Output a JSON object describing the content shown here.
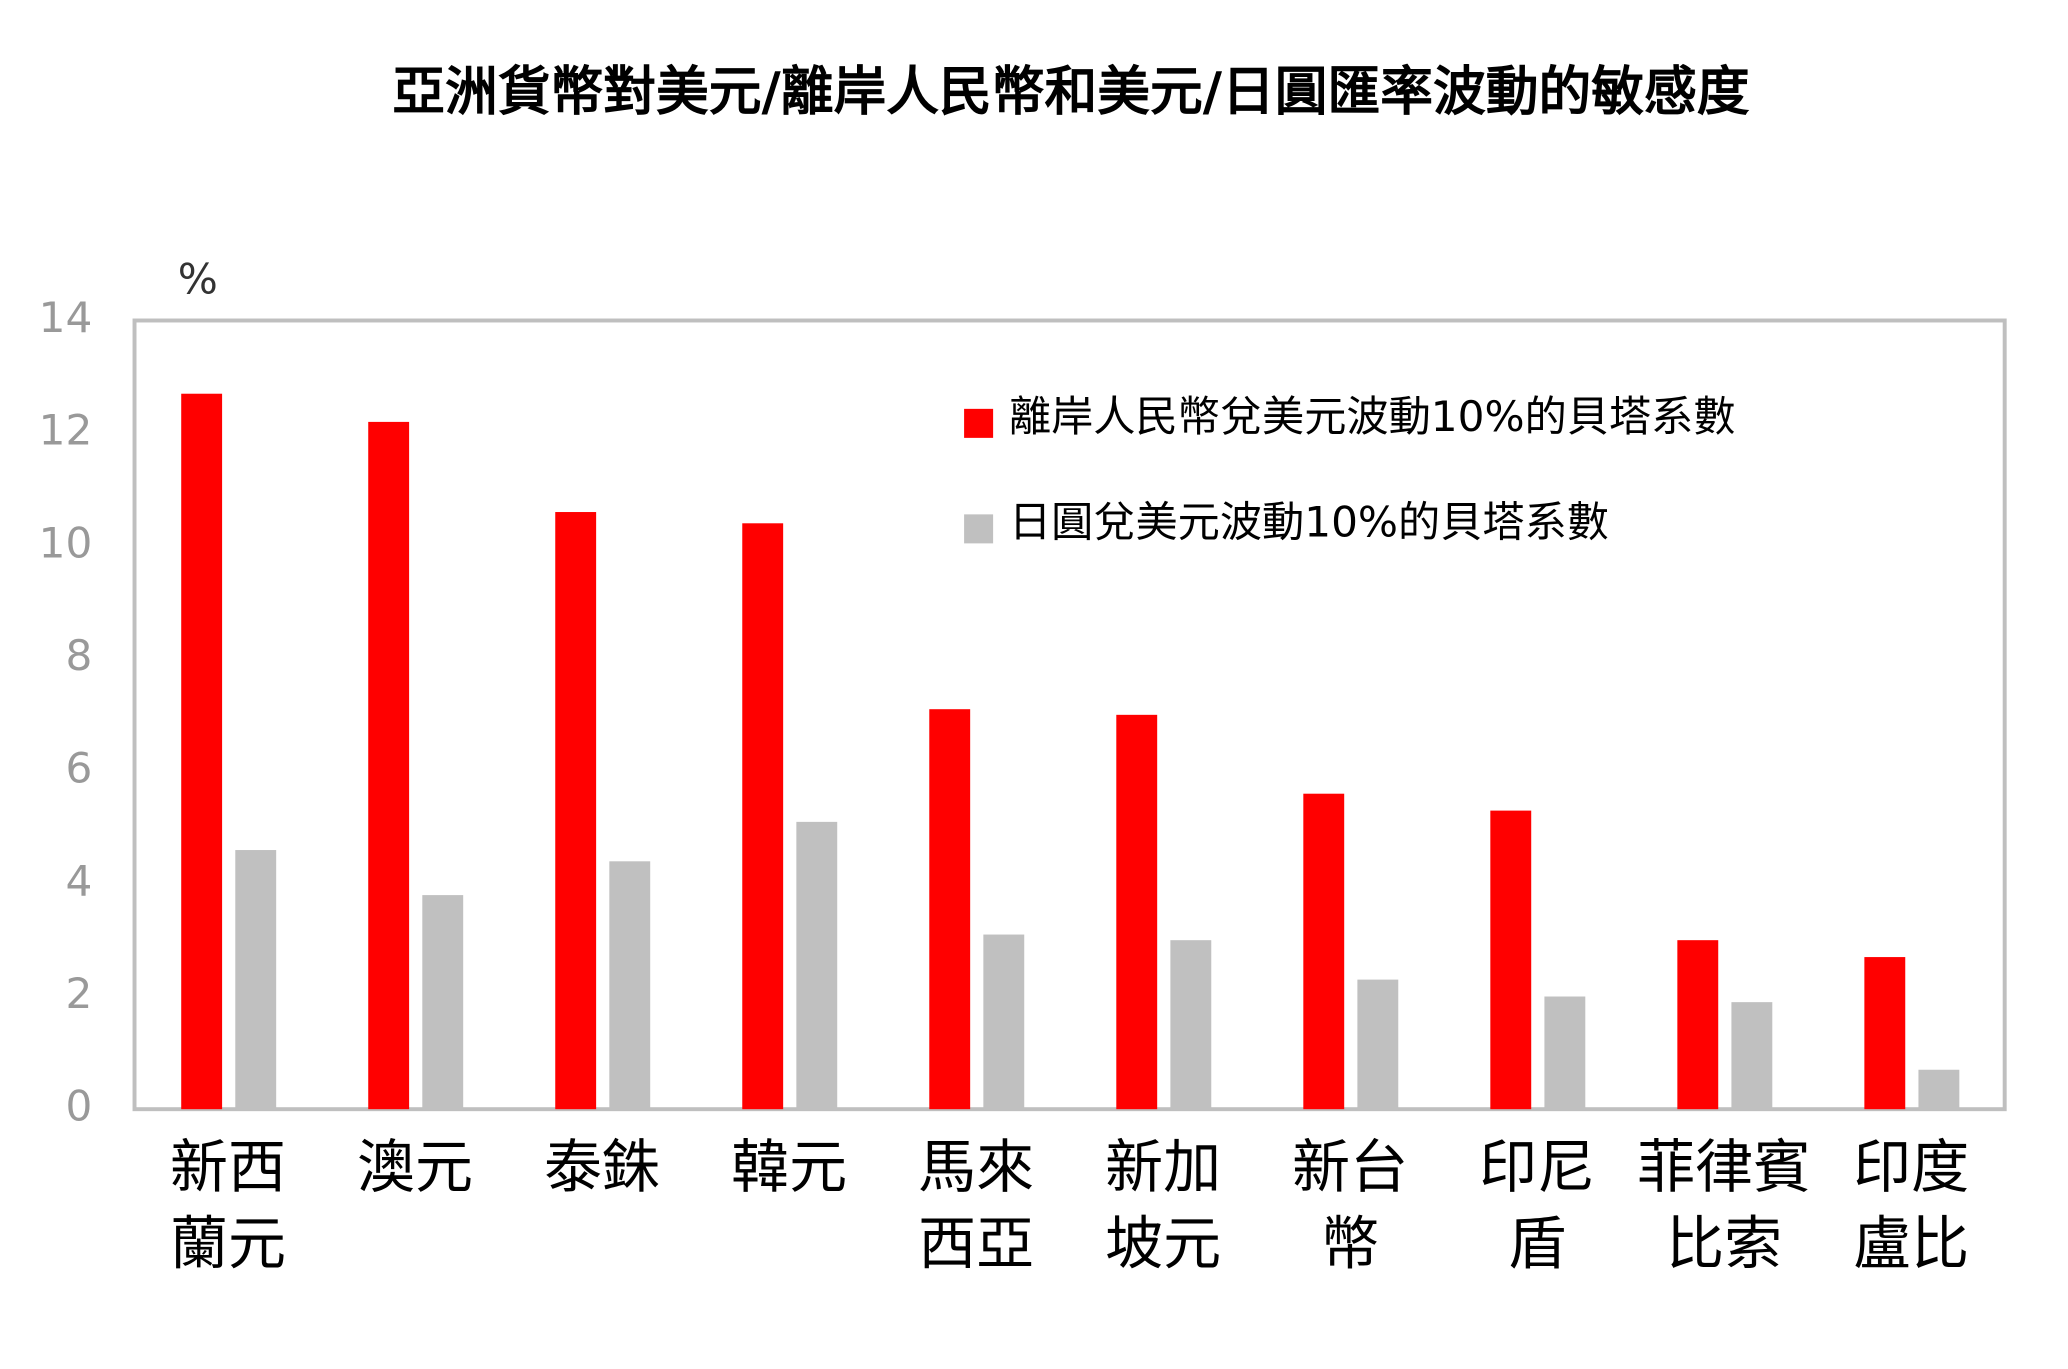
{
  "chart_data": {
    "type": "bar",
    "title": "亞洲貨幣對美元/離岸人民幣和美元/日圓匯率波動的敏感度",
    "y_label": "%",
    "categories": [
      "新西\n蘭元",
      "澳元",
      "泰銖",
      "韓元",
      "馬來\n西亞",
      "新加\n坡元",
      "新台\n幣",
      "印尼\n盾",
      "菲律賓\n比索",
      "印度\n盧比"
    ],
    "series": [
      {
        "name": "離岸人民幣兌美元波動10%的貝塔系數",
        "color": "#ff0000",
        "values": [
          12.7,
          12.2,
          10.6,
          10.4,
          7.1,
          7.0,
          5.6,
          5.3,
          3.0,
          2.7
        ]
      },
      {
        "name": "日圓兌美元波動10%的貝塔系數",
        "color": "#c0c0c0",
        "values": [
          4.6,
          3.8,
          4.4,
          5.1,
          3.1,
          3.0,
          2.3,
          2.0,
          1.9,
          0.7
        ]
      }
    ],
    "ylim": [
      0,
      14
    ],
    "yticks": [
      0,
      2,
      4,
      6,
      8,
      10,
      12,
      14
    ],
    "grid": false
  }
}
